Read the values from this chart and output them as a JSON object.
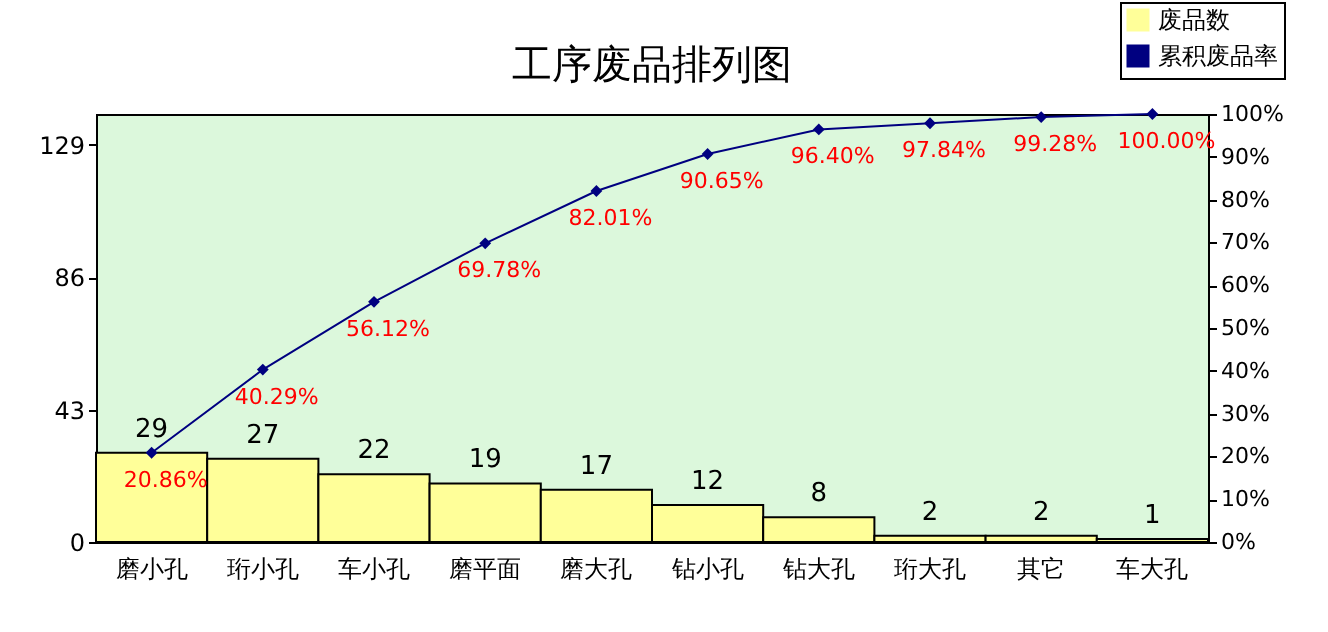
{
  "chart_data": {
    "type": "bar",
    "title": "工序废品排列图",
    "categories": [
      "磨小孔",
      "珩小孔",
      "车小孔",
      "磨平面",
      "磨大孔",
      "钻小孔",
      "钻大孔",
      "珩大孔",
      "其它",
      "车大孔"
    ],
    "series": [
      {
        "name": "废品数",
        "type": "bar",
        "color": "#ffff99",
        "values": [
          29,
          27,
          22,
          19,
          17,
          12,
          8,
          2,
          2,
          1
        ],
        "value_labels": [
          "29",
          "27",
          "22",
          "19",
          "17",
          "12",
          "8",
          "2",
          "2",
          "1"
        ]
      },
      {
        "name": "累积废品率",
        "type": "line",
        "axis": "y2",
        "color": "#000080",
        "marker": "diamond",
        "values": [
          20.86,
          40.29,
          56.12,
          69.78,
          82.01,
          90.65,
          96.4,
          97.84,
          99.28,
          100.0
        ],
        "value_labels": [
          "20.86%",
          "40.29%",
          "56.12%",
          "69.78%",
          "82.01%",
          "90.65%",
          "96.40%",
          "97.84%",
          "99.28%",
          "100.00%"
        ]
      }
    ],
    "ylim": [
      0,
      139
    ],
    "yticks": [
      0,
      43,
      86,
      129
    ],
    "y2lim": [
      0,
      100
    ],
    "y2ticks": [
      {
        "value": 0,
        "label": "0%"
      },
      {
        "value": 10,
        "label": "10%"
      },
      {
        "value": 20,
        "label": "20%"
      },
      {
        "value": 30,
        "label": "30%"
      },
      {
        "value": 40,
        "label": "40%"
      },
      {
        "value": 50,
        "label": "50%"
      },
      {
        "value": 60,
        "label": "60%"
      },
      {
        "value": 70,
        "label": "70%"
      },
      {
        "value": 80,
        "label": "80%"
      },
      {
        "value": 90,
        "label": "90%"
      },
      {
        "value": 100,
        "label": "100%"
      }
    ],
    "grid": false,
    "legend": "top right"
  }
}
